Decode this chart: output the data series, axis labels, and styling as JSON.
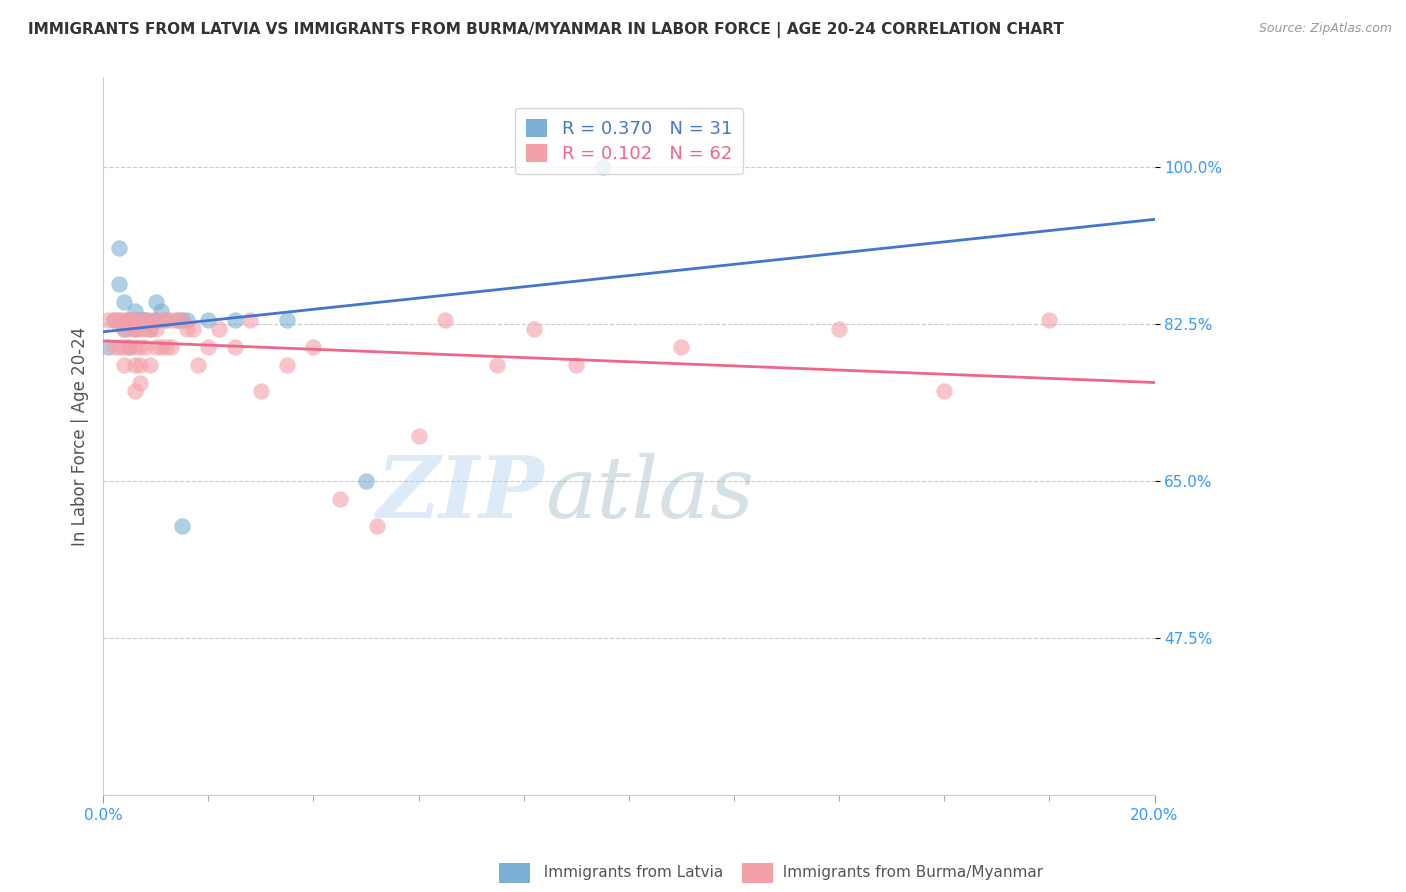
{
  "title": "IMMIGRANTS FROM LATVIA VS IMMIGRANTS FROM BURMA/MYANMAR IN LABOR FORCE | AGE 20-24 CORRELATION CHART",
  "source": "Source: ZipAtlas.com",
  "ylabel": "In Labor Force | Age 20-24",
  "xaxis_label": "Immigrants from Latvia",
  "xaxis_label2": "Immigrants from Burma/Myanmar",
  "xlim": [
    0.0,
    0.2
  ],
  "ylim": [
    0.3,
    1.1
  ],
  "yticks": [
    0.475,
    0.65,
    0.825,
    1.0
  ],
  "ytick_labels": [
    "47.5%",
    "65.0%",
    "82.5%",
    "100.0%"
  ],
  "xtick_left_label": "0.0%",
  "xtick_right_label": "20.0%",
  "R_latvia": 0.37,
  "N_latvia": 31,
  "R_burma": 0.102,
  "N_burma": 62,
  "color_latvia": "#7BAFD4",
  "color_burma": "#F4A0A8",
  "color_trendline_latvia": "#4477CC",
  "color_trendline_burma": "#EE6688",
  "watermark_zip": "ZIP",
  "watermark_atlas": "atlas",
  "latvia_x": [
    0.001,
    0.002,
    0.003,
    0.003,
    0.004,
    0.004,
    0.005,
    0.005,
    0.005,
    0.006,
    0.006,
    0.006,
    0.007,
    0.007,
    0.008,
    0.008,
    0.009,
    0.01,
    0.01,
    0.01,
    0.011,
    0.012,
    0.014,
    0.015,
    0.016,
    0.02,
    0.025,
    0.035,
    0.05,
    0.095,
    0.015
  ],
  "latvia_y": [
    0.8,
    0.83,
    0.87,
    0.91,
    0.85,
    0.82,
    0.83,
    0.83,
    0.8,
    0.84,
    0.82,
    0.83,
    0.83,
    0.83,
    0.83,
    0.83,
    0.82,
    0.83,
    0.83,
    0.85,
    0.84,
    0.83,
    0.83,
    0.83,
    0.83,
    0.83,
    0.83,
    0.83,
    0.65,
    1.0,
    0.6
  ],
  "burma_x": [
    0.001,
    0.002,
    0.002,
    0.003,
    0.003,
    0.003,
    0.004,
    0.004,
    0.004,
    0.004,
    0.005,
    0.005,
    0.005,
    0.005,
    0.006,
    0.006,
    0.006,
    0.006,
    0.006,
    0.007,
    0.007,
    0.007,
    0.007,
    0.007,
    0.008,
    0.008,
    0.008,
    0.009,
    0.009,
    0.009,
    0.01,
    0.01,
    0.01,
    0.011,
    0.011,
    0.012,
    0.012,
    0.013,
    0.013,
    0.014,
    0.015,
    0.016,
    0.017,
    0.018,
    0.02,
    0.022,
    0.025,
    0.028,
    0.03,
    0.035,
    0.04,
    0.045,
    0.052,
    0.06,
    0.065,
    0.075,
    0.082,
    0.09,
    0.11,
    0.14,
    0.16,
    0.18
  ],
  "burma_y": [
    0.83,
    0.83,
    0.8,
    0.83,
    0.83,
    0.8,
    0.83,
    0.82,
    0.8,
    0.78,
    0.83,
    0.83,
    0.82,
    0.8,
    0.83,
    0.82,
    0.8,
    0.78,
    0.75,
    0.83,
    0.82,
    0.8,
    0.78,
    0.76,
    0.83,
    0.82,
    0.8,
    0.83,
    0.82,
    0.78,
    0.83,
    0.82,
    0.8,
    0.83,
    0.8,
    0.83,
    0.8,
    0.83,
    0.8,
    0.83,
    0.83,
    0.82,
    0.82,
    0.78,
    0.8,
    0.82,
    0.8,
    0.83,
    0.75,
    0.78,
    0.8,
    0.63,
    0.6,
    0.7,
    0.83,
    0.78,
    0.82,
    0.78,
    0.8,
    0.82,
    0.75,
    0.83
  ]
}
